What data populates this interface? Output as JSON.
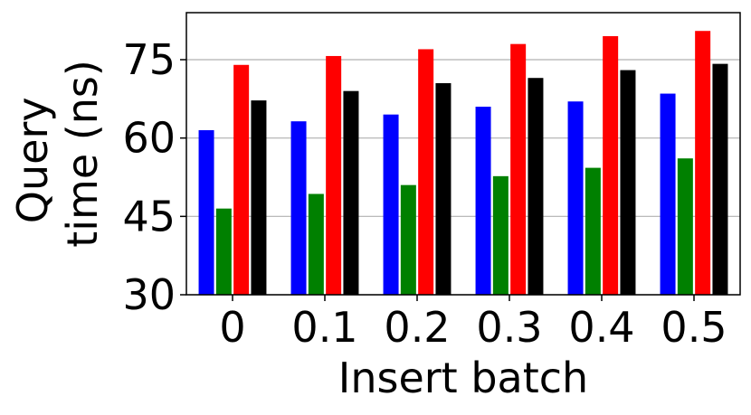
{
  "chart_data": {
    "type": "bar",
    "title": "",
    "xlabel": "Insert batch",
    "ylabel_lines": [
      "Query",
      "time (ns)"
    ],
    "categories": [
      "0",
      "0.1",
      "0.2",
      "0.3",
      "0.4",
      "0.5"
    ],
    "ylim": [
      30,
      84
    ],
    "yticks": [
      30,
      45,
      60,
      75
    ],
    "ytick_labels": [
      "30",
      "45",
      "60",
      "75"
    ],
    "grid": "horizontal",
    "legend": "none",
    "series": [
      {
        "color": "#0000ff",
        "values": [
          61.5,
          63.2,
          64.5,
          66.0,
          67.0,
          68.5
        ]
      },
      {
        "color": "#008000",
        "values": [
          46.5,
          49.3,
          51.0,
          52.7,
          54.3,
          56.1
        ]
      },
      {
        "color": "#ff0000",
        "values": [
          74.0,
          75.7,
          77.0,
          78.0,
          79.5,
          80.5
        ]
      },
      {
        "color": "#000000",
        "values": [
          67.2,
          69.0,
          70.5,
          71.5,
          73.0,
          74.2
        ]
      }
    ]
  }
}
